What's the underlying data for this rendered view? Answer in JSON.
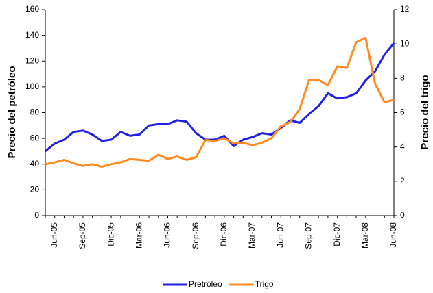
{
  "chart_data": {
    "type": "line",
    "categories": [
      null,
      "Jun-05",
      null,
      null,
      "Sep-05",
      null,
      null,
      "Dic-05",
      null,
      null,
      "Mar-06",
      null,
      null,
      "Jun-06",
      null,
      null,
      "Sep-06",
      null,
      null,
      "Dic-06",
      null,
      null,
      "Mar-07",
      null,
      null,
      "Jun-07",
      null,
      null,
      "Sep-07",
      null,
      null,
      "Dic-07",
      null,
      null,
      "Mar-08",
      null,
      null,
      "Jun-08"
    ],
    "y_label": "Precio del petróleo",
    "y2_label": "Precio del trigo",
    "ylim": [
      0,
      160
    ],
    "yticks": [
      0,
      20,
      40,
      60,
      80,
      100,
      120,
      140,
      160
    ],
    "y2lim": [
      0,
      12
    ],
    "y2ticks": [
      0,
      2,
      4,
      6,
      8,
      10,
      12
    ],
    "legend": "bottom",
    "series": [
      {
        "name": "Pretróleo",
        "color": "#1f1fe8",
        "values": [
          50,
          56,
          59,
          65,
          66,
          63,
          58,
          59,
          65,
          62,
          63,
          70,
          71,
          71,
          74,
          73,
          64,
          59,
          59,
          62,
          54,
          59,
          61,
          64,
          63,
          68,
          74,
          72,
          79,
          85,
          95,
          91,
          92,
          95,
          105,
          112,
          125,
          134
        ]
      },
      {
        "name": "Trigo",
        "color": "#ff8a1f",
        "axis": "y2",
        "values": [
          3.0,
          3.1,
          3.25,
          3.05,
          2.9,
          3.0,
          2.85,
          3.0,
          3.1,
          3.3,
          3.25,
          3.2,
          3.55,
          3.3,
          3.45,
          3.25,
          3.4,
          4.4,
          4.35,
          4.5,
          4.2,
          4.25,
          4.1,
          4.25,
          4.5,
          5.2,
          5.45,
          6.2,
          7.9,
          7.9,
          7.6,
          8.7,
          8.6,
          10.1,
          10.35,
          7.7,
          6.6,
          6.75
        ]
      }
    ]
  }
}
